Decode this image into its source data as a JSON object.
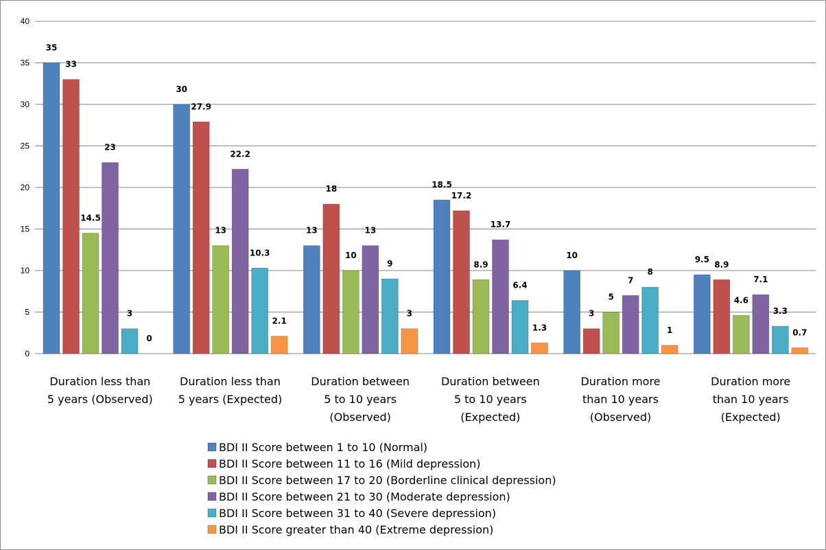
{
  "chart_data": {
    "type": "bar",
    "ylim": [
      0,
      40
    ],
    "yticks": [
      "0",
      "5",
      "10",
      "15",
      "20",
      "25",
      "30",
      "35",
      "40"
    ],
    "grid": true,
    "legend_position": "bottom",
    "categories": [
      [
        "Duration less than",
        "5 years (Observed)"
      ],
      [
        "Duration less than",
        "5 years (Expected)"
      ],
      [
        "Duration between",
        "5 to 10 years",
        "(Observed)"
      ],
      [
        "Duration between",
        "5 to 10 years",
        "(Expected)"
      ],
      [
        "Duration more",
        "than 10 years",
        "(Observed)"
      ],
      [
        "Duration more",
        "than 10 years",
        "(Expected)"
      ]
    ],
    "series": [
      {
        "name": "BDI II Score between 1 to 10 (Normal)",
        "color": "#4F81BD",
        "values": [
          35,
          30,
          13,
          18.5,
          10,
          9.5
        ],
        "labels": [
          "35",
          "30",
          "13",
          "18.5",
          "10",
          "9.5"
        ]
      },
      {
        "name": "BDI II Score between 11 to 16 (Mild depression)",
        "color": "#C0504D",
        "values": [
          33,
          27.9,
          18,
          17.2,
          3,
          8.9
        ],
        "labels": [
          "33",
          "27.9",
          "18",
          "17.2",
          "3",
          "8.9"
        ]
      },
      {
        "name": "BDI II Score between 17 to 20 (Borderline clinical depression)",
        "color": "#9BBB59",
        "values": [
          14.5,
          13,
          10,
          8.9,
          5,
          4.6
        ],
        "labels": [
          "14.5",
          "13",
          "10",
          "8.9",
          "5",
          "4.6"
        ]
      },
      {
        "name": "BDI II Score between 21 to 30 (Moderate depression)",
        "color": "#8064A2",
        "values": [
          23,
          22.2,
          13,
          13.7,
          7,
          7.1
        ],
        "labels": [
          "23",
          "22.2",
          "13",
          "13.7",
          "7",
          "7.1"
        ]
      },
      {
        "name": "BDI II Score between 31 to 40 (Severe depression)",
        "color": "#4BACC6",
        "values": [
          3,
          10.3,
          9,
          6.4,
          8,
          3.3
        ],
        "labels": [
          "3",
          "10.3",
          "9",
          "6.4",
          "8",
          "3.3"
        ]
      },
      {
        "name": "BDI II Score greater than 40 (Extreme depression)",
        "color": "#F79646",
        "values": [
          0,
          2.1,
          3,
          1.3,
          1,
          0.7
        ],
        "labels": [
          "0",
          "2.1",
          "3",
          "1.3",
          "1",
          "0.7"
        ]
      }
    ]
  }
}
